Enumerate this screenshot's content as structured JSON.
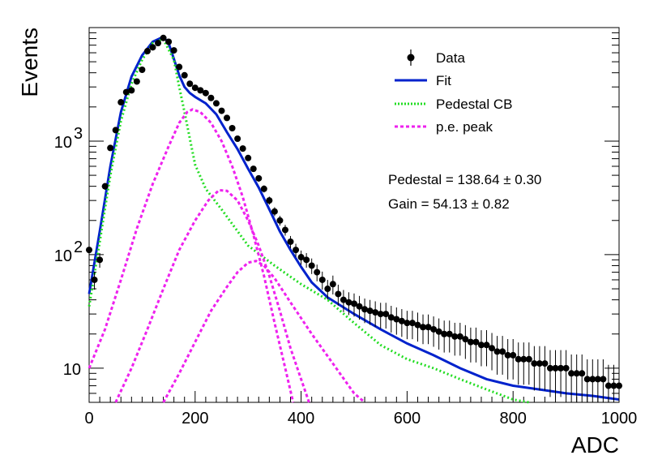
{
  "chart_data": {
    "type": "scatter",
    "xlabel": "ADC",
    "ylabel": "Events",
    "xlim": [
      0,
      1000
    ],
    "ylim": [
      5,
      10000
    ],
    "y_scale": "log",
    "grid": false,
    "legend_placement": "top-right",
    "x_ticks": [
      "0",
      "200",
      "400",
      "600",
      "800",
      "1000"
    ],
    "y_ticks": [
      {
        "value": 10,
        "base": "10",
        "exp": ""
      },
      {
        "value": 100,
        "base": "10",
        "exp": "2"
      },
      {
        "value": 1000,
        "base": "10",
        "exp": "3"
      }
    ],
    "legend": [
      "Data",
      "Fit",
      "Pedestal CB",
      "p.e. peak"
    ],
    "annotations": [
      "Pedestal = 138.64 ± 0.30",
      "Gain = 54.13 ± 0.82"
    ],
    "colors": {
      "data": "#000000",
      "fit": "#0022cc",
      "pedestal": "#22dd22",
      "pe": "#ee22ee"
    },
    "series": [
      {
        "name": "Data",
        "kind": "points",
        "points": [
          [
            0,
            110
          ],
          [
            10,
            60
          ],
          [
            20,
            90
          ],
          [
            30,
            400
          ],
          [
            40,
            870
          ],
          [
            50,
            1250
          ],
          [
            60,
            2200
          ],
          [
            70,
            2700
          ],
          [
            80,
            2800
          ],
          [
            90,
            3350
          ],
          [
            100,
            4250
          ],
          [
            110,
            6200
          ],
          [
            120,
            6700
          ],
          [
            130,
            7300
          ],
          [
            140,
            8100
          ],
          [
            150,
            7500
          ],
          [
            160,
            6300
          ],
          [
            170,
            4500
          ],
          [
            180,
            3800
          ],
          [
            190,
            3200
          ],
          [
            200,
            2950
          ],
          [
            210,
            2800
          ],
          [
            220,
            2650
          ],
          [
            230,
            2400
          ],
          [
            240,
            2150
          ],
          [
            250,
            1850
          ],
          [
            260,
            1600
          ],
          [
            270,
            1300
          ],
          [
            280,
            1050
          ],
          [
            290,
            860
          ],
          [
            300,
            710
          ],
          [
            310,
            570
          ],
          [
            320,
            470
          ],
          [
            330,
            380
          ],
          [
            340,
            300
          ],
          [
            350,
            240
          ],
          [
            360,
            200
          ],
          [
            370,
            165
          ],
          [
            380,
            130
          ],
          [
            390,
            110
          ],
          [
            400,
            95
          ],
          [
            410,
            90
          ],
          [
            420,
            80
          ],
          [
            430,
            70
          ],
          [
            440,
            60
          ],
          [
            450,
            50
          ],
          [
            460,
            55
          ],
          [
            470,
            45
          ],
          [
            480,
            40
          ],
          [
            490,
            38
          ],
          [
            500,
            37
          ],
          [
            510,
            35
          ],
          [
            520,
            33
          ],
          [
            530,
            32
          ],
          [
            540,
            31
          ],
          [
            550,
            30
          ],
          [
            560,
            30
          ],
          [
            570,
            28
          ],
          [
            580,
            27
          ],
          [
            590,
            26
          ],
          [
            600,
            25
          ],
          [
            610,
            25
          ],
          [
            620,
            24
          ],
          [
            630,
            23
          ],
          [
            640,
            23
          ],
          [
            650,
            22
          ],
          [
            660,
            21
          ],
          [
            670,
            20
          ],
          [
            680,
            20
          ],
          [
            690,
            19
          ],
          [
            700,
            19
          ],
          [
            710,
            18
          ],
          [
            720,
            17
          ],
          [
            730,
            17
          ],
          [
            740,
            16
          ],
          [
            750,
            16
          ],
          [
            760,
            15
          ],
          [
            770,
            14
          ],
          [
            780,
            14
          ],
          [
            790,
            13
          ],
          [
            800,
            13
          ],
          [
            810,
            12
          ],
          [
            820,
            12
          ],
          [
            830,
            12
          ],
          [
            840,
            11
          ],
          [
            850,
            11
          ],
          [
            860,
            11
          ],
          [
            870,
            10
          ],
          [
            880,
            10
          ],
          [
            890,
            10
          ],
          [
            900,
            10
          ],
          [
            910,
            9
          ],
          [
            920,
            9
          ],
          [
            930,
            9
          ],
          [
            940,
            8
          ],
          [
            950,
            8
          ],
          [
            960,
            8
          ],
          [
            970,
            8
          ],
          [
            980,
            7
          ],
          [
            990,
            7
          ],
          [
            1000,
            7
          ]
        ]
      },
      {
        "name": "Fit",
        "kind": "line",
        "points": [
          [
            0,
            45
          ],
          [
            20,
            160
          ],
          [
            40,
            600
          ],
          [
            60,
            1800
          ],
          [
            80,
            3700
          ],
          [
            100,
            5700
          ],
          [
            120,
            7500
          ],
          [
            140,
            8300
          ],
          [
            150,
            7300
          ],
          [
            160,
            5300
          ],
          [
            170,
            3800
          ],
          [
            180,
            3000
          ],
          [
            190,
            2650
          ],
          [
            200,
            2450
          ],
          [
            220,
            2150
          ],
          [
            240,
            1720
          ],
          [
            260,
            1200
          ],
          [
            280,
            850
          ],
          [
            300,
            570
          ],
          [
            320,
            390
          ],
          [
            340,
            250
          ],
          [
            360,
            160
          ],
          [
            380,
            110
          ],
          [
            400,
            78
          ],
          [
            420,
            57
          ],
          [
            450,
            42
          ],
          [
            500,
            30
          ],
          [
            550,
            22
          ],
          [
            600,
            16.5
          ],
          [
            650,
            13
          ],
          [
            700,
            10
          ],
          [
            750,
            8
          ],
          [
            800,
            7
          ],
          [
            850,
            6.5
          ],
          [
            900,
            6
          ],
          [
            950,
            5.7
          ],
          [
            1000,
            5.3
          ]
        ]
      },
      {
        "name": "Pedestal CB",
        "kind": "dashed",
        "points": [
          [
            0,
            35
          ],
          [
            20,
            130
          ],
          [
            40,
            500
          ],
          [
            60,
            1500
          ],
          [
            80,
            3200
          ],
          [
            100,
            5200
          ],
          [
            120,
            7300
          ],
          [
            140,
            7900
          ],
          [
            160,
            5200
          ],
          [
            170,
            3000
          ],
          [
            180,
            1800
          ],
          [
            190,
            1050
          ],
          [
            200,
            620
          ],
          [
            220,
            380
          ],
          [
            250,
            250
          ],
          [
            300,
            120
          ],
          [
            350,
            80
          ],
          [
            400,
            55
          ],
          [
            450,
            40
          ],
          [
            500,
            25
          ],
          [
            550,
            16
          ],
          [
            600,
            12
          ],
          [
            650,
            10
          ],
          [
            700,
            8
          ],
          [
            750,
            6.5
          ],
          [
            800,
            5.3
          ],
          [
            830,
            5
          ]
        ]
      },
      {
        "name": "p.e. peak 1",
        "kind": "dashed-pe",
        "points": [
          [
            0,
            10
          ],
          [
            30,
            22
          ],
          [
            60,
            60
          ],
          [
            90,
            170
          ],
          [
            120,
            420
          ],
          [
            150,
            900
          ],
          [
            170,
            1450
          ],
          [
            185,
            1800
          ],
          [
            195,
            1900
          ],
          [
            210,
            1800
          ],
          [
            230,
            1450
          ],
          [
            250,
            1000
          ],
          [
            270,
            600
          ],
          [
            290,
            320
          ],
          [
            310,
            150
          ],
          [
            330,
            65
          ],
          [
            350,
            25
          ],
          [
            370,
            10
          ],
          [
            385,
            5
          ]
        ]
      },
      {
        "name": "p.e. peak 2",
        "kind": "dashed-pe",
        "points": [
          [
            50,
            5
          ],
          [
            80,
            10
          ],
          [
            110,
            22
          ],
          [
            140,
            50
          ],
          [
            170,
            110
          ],
          [
            200,
            200
          ],
          [
            225,
            300
          ],
          [
            245,
            370
          ],
          [
            260,
            365
          ],
          [
            280,
            300
          ],
          [
            300,
            200
          ],
          [
            320,
            120
          ],
          [
            340,
            65
          ],
          [
            360,
            32
          ],
          [
            380,
            15
          ],
          [
            400,
            8
          ],
          [
            415,
            5
          ]
        ]
      },
      {
        "name": "p.e. peak 3",
        "kind": "dashed-pe",
        "points": [
          [
            140,
            5
          ],
          [
            170,
            9
          ],
          [
            200,
            17
          ],
          [
            230,
            32
          ],
          [
            260,
            52
          ],
          [
            280,
            70
          ],
          [
            300,
            85
          ],
          [
            315,
            88
          ],
          [
            330,
            80
          ],
          [
            350,
            62
          ],
          [
            380,
            38
          ],
          [
            420,
            20
          ],
          [
            460,
            11
          ],
          [
            500,
            6
          ],
          [
            520,
            5
          ]
        ]
      }
    ]
  }
}
